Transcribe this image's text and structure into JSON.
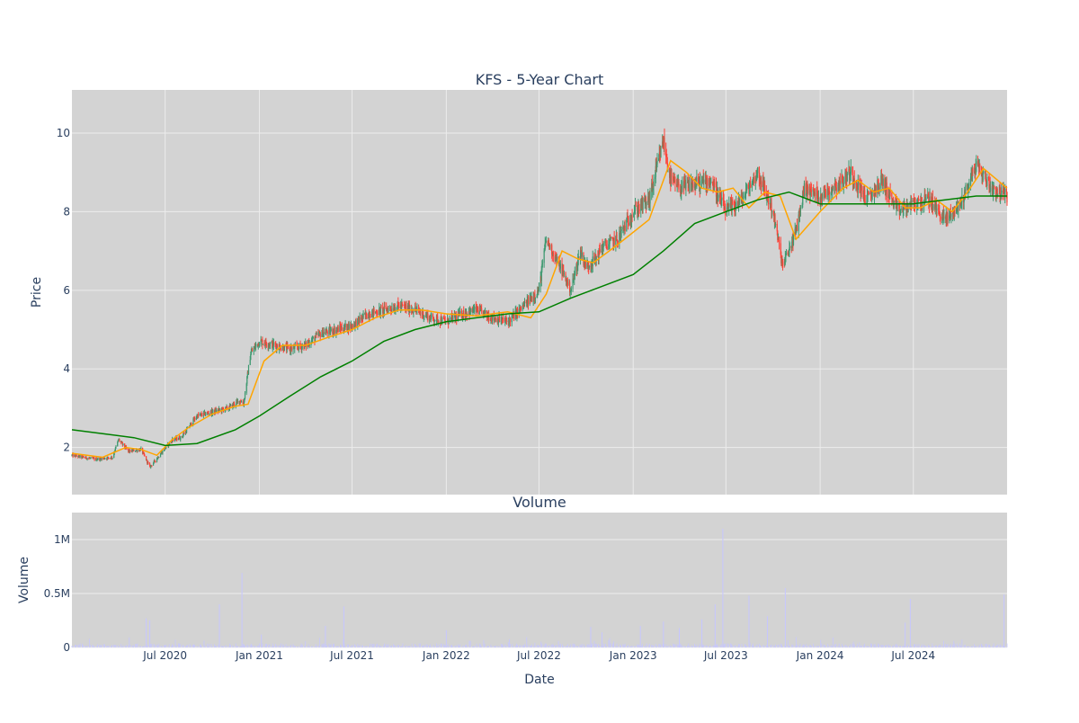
{
  "chart_data": [
    {
      "type": "candlestick",
      "title": "KFS - 5-Year Chart",
      "ylabel": "Price",
      "xlabel": "",
      "ylim": [
        0.8,
        11.1
      ],
      "yticks": [
        2,
        4,
        6,
        8,
        10
      ],
      "xlim": [
        "2020-01-01",
        "2024-12-31"
      ],
      "xticks": [
        "2020-07-01",
        "2021-01-01",
        "2021-07-01",
        "2022-01-01",
        "2022-07-01",
        "2023-01-01",
        "2023-07-01",
        "2024-01-01",
        "2024-07-01"
      ],
      "grid": true,
      "colors": {
        "up": "#3d9970",
        "down": "#ff4136",
        "plot_bg": "#d3d3d3",
        "grid": "#ececec",
        "text": "#2a3f5f"
      },
      "series": [
        {
          "name": "",
          "kind": "close",
          "x": [
            "2020-01-01",
            "2020-02-15",
            "2020-03-20",
            "2020-04-01",
            "2020-04-20",
            "2020-05-15",
            "2020-06-01",
            "2020-06-20",
            "2020-07-15",
            "2020-08-01",
            "2020-09-01",
            "2020-10-01",
            "2020-11-01",
            "2020-11-25",
            "2020-12-01",
            "2020-12-15",
            "2021-01-01",
            "2021-02-01",
            "2021-03-01",
            "2021-04-01",
            "2021-05-01",
            "2021-06-01",
            "2021-07-01",
            "2021-08-01",
            "2021-09-01",
            "2021-10-01",
            "2021-11-01",
            "2021-12-01",
            "2022-01-01",
            "2022-02-01",
            "2022-03-01",
            "2022-04-01",
            "2022-05-01",
            "2022-06-01",
            "2022-07-01",
            "2022-07-15",
            "2022-08-15",
            "2022-09-01",
            "2022-09-20",
            "2022-10-01",
            "2022-10-20",
            "2022-11-01",
            "2022-12-01",
            "2023-01-01",
            "2023-02-01",
            "2023-03-01",
            "2023-03-15",
            "2023-04-01",
            "2023-05-01",
            "2023-06-01",
            "2023-07-01",
            "2023-08-01",
            "2023-09-01",
            "2023-10-01",
            "2023-10-20",
            "2023-11-15",
            "2023-12-01",
            "2024-01-01",
            "2024-02-15",
            "2024-03-01",
            "2024-04-01",
            "2024-05-01",
            "2024-06-01",
            "2024-07-01",
            "2024-08-01",
            "2024-09-01",
            "2024-10-01",
            "2024-11-01",
            "2024-12-01",
            "2024-12-31"
          ],
          "values": [
            1.8,
            1.7,
            1.75,
            2.2,
            1.9,
            1.95,
            1.5,
            1.8,
            2.2,
            2.25,
            2.8,
            2.9,
            3.0,
            3.2,
            3.1,
            4.4,
            4.7,
            4.6,
            4.5,
            4.6,
            4.9,
            5.0,
            5.1,
            5.4,
            5.5,
            5.6,
            5.5,
            5.3,
            5.2,
            5.4,
            5.5,
            5.3,
            5.2,
            5.6,
            6.0,
            7.3,
            6.5,
            6.0,
            7.0,
            6.6,
            6.8,
            7.1,
            7.3,
            8.0,
            8.3,
            9.8,
            8.8,
            8.6,
            8.7,
            8.8,
            8.0,
            8.3,
            9.0,
            8.0,
            6.6,
            7.5,
            8.6,
            8.4,
            8.8,
            9.0,
            8.3,
            8.8,
            8.0,
            8.2,
            8.3,
            7.8,
            8.2,
            9.2,
            8.6,
            8.4
          ]
        },
        {
          "name": "",
          "kind": "ma_short",
          "color": "#ffa500",
          "x": [
            "2020-01-01",
            "2020-03-01",
            "2020-04-15",
            "2020-05-15",
            "2020-06-15",
            "2020-07-15",
            "2020-08-15",
            "2020-10-01",
            "2020-11-15",
            "2020-12-10",
            "2021-01-10",
            "2021-02-15",
            "2021-04-01",
            "2021-05-15",
            "2021-07-01",
            "2021-08-15",
            "2021-10-01",
            "2021-11-15",
            "2022-01-01",
            "2022-03-01",
            "2022-05-01",
            "2022-06-15",
            "2022-07-15",
            "2022-08-15",
            "2022-09-15",
            "2022-10-15",
            "2022-11-15",
            "2022-12-15",
            "2023-02-01",
            "2023-03-15",
            "2023-04-15",
            "2023-05-15",
            "2023-06-15",
            "2023-07-15",
            "2023-08-15",
            "2023-09-15",
            "2023-10-15",
            "2023-11-15",
            "2024-01-01",
            "2024-02-15",
            "2024-03-15",
            "2024-04-15",
            "2024-05-15",
            "2024-06-15",
            "2024-07-15",
            "2024-08-15",
            "2024-09-15",
            "2024-10-15",
            "2024-11-15",
            "2024-12-31"
          ],
          "values": [
            1.85,
            1.75,
            2.0,
            1.95,
            1.8,
            2.2,
            2.5,
            2.85,
            3.05,
            3.1,
            4.2,
            4.6,
            4.6,
            4.8,
            5.0,
            5.3,
            5.5,
            5.5,
            5.4,
            5.35,
            5.45,
            5.3,
            5.9,
            7.0,
            6.8,
            6.7,
            7.0,
            7.3,
            7.8,
            9.3,
            9.0,
            8.6,
            8.5,
            8.6,
            8.1,
            8.5,
            8.4,
            7.3,
            8.0,
            8.6,
            8.8,
            8.5,
            8.6,
            8.1,
            8.1,
            8.3,
            8.0,
            8.5,
            9.1,
            8.6
          ]
        },
        {
          "name": "",
          "kind": "ma_long",
          "color": "#008000",
          "x": [
            "2020-01-01",
            "2020-03-01",
            "2020-05-01",
            "2020-07-01",
            "2020-09-01",
            "2020-11-15",
            "2021-01-01",
            "2021-03-01",
            "2021-05-01",
            "2021-07-01",
            "2021-09-01",
            "2021-11-01",
            "2022-01-01",
            "2022-03-01",
            "2022-05-01",
            "2022-07-01",
            "2022-09-01",
            "2022-11-01",
            "2023-01-01",
            "2023-03-01",
            "2023-05-01",
            "2023-07-01",
            "2023-09-01",
            "2023-11-01",
            "2024-01-01",
            "2024-03-01",
            "2024-05-01",
            "2024-07-01",
            "2024-09-01",
            "2024-11-01",
            "2024-12-31"
          ],
          "values": [
            2.45,
            2.35,
            2.25,
            2.05,
            2.1,
            2.45,
            2.8,
            3.3,
            3.8,
            4.2,
            4.7,
            5.0,
            5.2,
            5.3,
            5.4,
            5.45,
            5.8,
            6.1,
            6.4,
            7.0,
            7.7,
            8.0,
            8.3,
            8.5,
            8.2,
            8.2,
            8.2,
            8.2,
            8.3,
            8.4,
            8.4
          ]
        }
      ]
    },
    {
      "type": "bar",
      "title": "Volume",
      "ylabel": "Volume",
      "xlabel": "Date",
      "ylim": [
        0,
        1250000
      ],
      "yticks": [
        0,
        500000,
        1000000
      ],
      "ytick_labels": [
        "0",
        "0.5M",
        "1M"
      ],
      "xtick_labels": [
        "Jul 2020",
        "Jan 2021",
        "Jul 2021",
        "Jan 2022",
        "Jul 2022",
        "Jan 2023",
        "Jul 2023",
        "Jan 2024",
        "Jul 2024"
      ],
      "grid": true,
      "colors": {
        "bar": "#c6c6ff"
      },
      "spikes": {
        "x": [
          "2020-05-25",
          "2020-06-01",
          "2020-10-15",
          "2020-11-28",
          "2021-01-05",
          "2021-05-10",
          "2021-06-15",
          "2022-01-01",
          "2022-10-10",
          "2022-11-01",
          "2023-01-15",
          "2023-03-01",
          "2023-04-01",
          "2023-05-15",
          "2023-06-10",
          "2023-06-25",
          "2023-08-15",
          "2023-09-20",
          "2023-10-25",
          "2024-06-15",
          "2024-06-25",
          "2024-12-25"
        ],
        "values": [
          270000,
          250000,
          400000,
          690000,
          120000,
          200000,
          380000,
          160000,
          190000,
          140000,
          200000,
          240000,
          180000,
          260000,
          400000,
          1100000,
          480000,
          290000,
          550000,
          230000,
          450000,
          490000
        ]
      }
    }
  ]
}
